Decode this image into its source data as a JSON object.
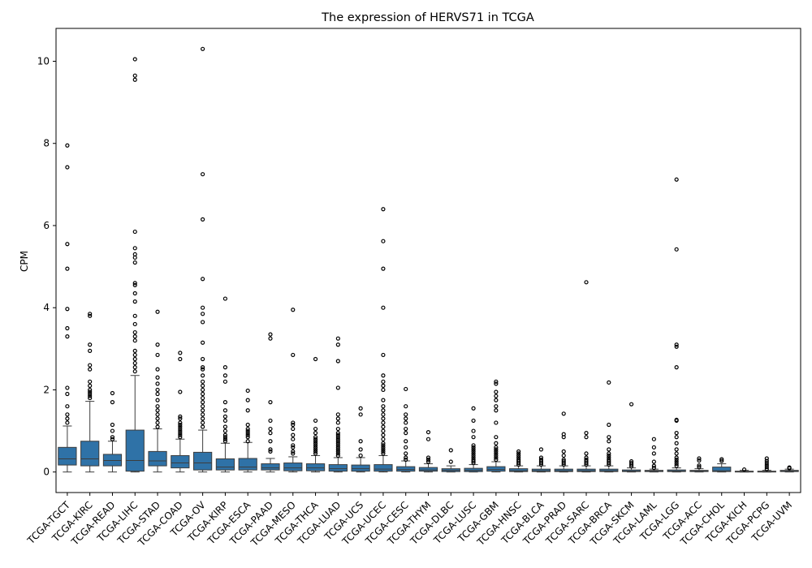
{
  "chart_data": {
    "type": "box",
    "title": "The expression of HERVS71 in TCGA",
    "xlabel": "",
    "ylabel": "CPM",
    "ylim": [
      -0.5,
      10.8
    ],
    "yticks": [
      0,
      2,
      4,
      6,
      8,
      10
    ],
    "grid": false,
    "colors": {
      "box": "#2f72a7",
      "line": "#3d3d3d",
      "outlier": "#000000"
    },
    "categories": [
      "TCGA-TGCT",
      "TCGA-KIRC",
      "TCGA-READ",
      "TCGA-LIHC",
      "TCGA-STAD",
      "TCGA-COAD",
      "TCGA-OV",
      "TCGA-KIRP",
      "TCGA-ESCA",
      "TCGA-PAAD",
      "TCGA-MESO",
      "TCGA-THCA",
      "TCGA-LUAD",
      "TCGA-UCS",
      "TCGA-UCEC",
      "TCGA-CESC",
      "TCGA-THYM",
      "TCGA-DLBC",
      "TCGA-LUSC",
      "TCGA-GBM",
      "TCGA-HNSC",
      "TCGA-BLCA",
      "TCGA-PRAD",
      "TCGA-SARC",
      "TCGA-BRCA",
      "TCGA-SKCM",
      "TCGA-LAML",
      "TCGA-LGG",
      "TCGA-ACC",
      "TCGA-CHOL",
      "TCGA-KICH",
      "TCGA-PCPG",
      "TCGA-UVM"
    ],
    "boxes": [
      {
        "whislo": 0,
        "q1": 0.17,
        "med": 0.32,
        "q3": 0.6,
        "whishi": 1.12,
        "fliers": [
          1.2,
          1.3,
          1.4,
          1.6,
          1.9,
          2.05,
          3.3,
          3.5,
          3.97,
          4.95,
          5.55,
          7.42,
          7.95
        ]
      },
      {
        "whislo": 0,
        "q1": 0.15,
        "med": 0.32,
        "q3": 0.75,
        "whishi": 1.72,
        "fliers": [
          1.8,
          1.85,
          1.9,
          1.95,
          2.0,
          2.1,
          2.2,
          2.5,
          2.6,
          2.95,
          3.1,
          3.8,
          3.85
        ]
      },
      {
        "whislo": 0,
        "q1": 0.15,
        "med": 0.28,
        "q3": 0.43,
        "whishi": 0.75,
        "fliers": [
          0.8,
          0.85,
          1.0,
          1.15,
          1.7,
          1.92
        ]
      },
      {
        "whislo": 0,
        "q1": 0.02,
        "med": 0.28,
        "q3": 1.02,
        "whishi": 2.35,
        "fliers": [
          2.45,
          2.55,
          2.65,
          2.75,
          2.85,
          2.95,
          3.2,
          3.3,
          3.4,
          3.6,
          3.8,
          4.15,
          4.35,
          4.55,
          4.6,
          5.1,
          5.22,
          5.3,
          5.45,
          5.85,
          9.55,
          9.65,
          10.05
        ]
      },
      {
        "whislo": 0,
        "q1": 0.15,
        "med": 0.27,
        "q3": 0.5,
        "whishi": 1.05,
        "fliers": [
          1.1,
          1.2,
          1.3,
          1.4,
          1.5,
          1.6,
          1.75,
          1.9,
          2.0,
          2.15,
          2.3,
          2.5,
          2.85,
          3.1,
          3.9
        ]
      },
      {
        "whislo": 0,
        "q1": 0.1,
        "med": 0.22,
        "q3": 0.4,
        "whishi": 0.8,
        "fliers": [
          0.85,
          0.9,
          0.95,
          1.0,
          1.05,
          1.1,
          1.15,
          1.2,
          1.3,
          1.35,
          1.95,
          2.75,
          2.9
        ]
      },
      {
        "whislo": 0,
        "q1": 0.05,
        "med": 0.22,
        "q3": 0.48,
        "whishi": 1.02,
        "fliers": [
          1.1,
          1.2,
          1.3,
          1.4,
          1.5,
          1.6,
          1.7,
          1.8,
          1.9,
          2.0,
          2.1,
          2.2,
          2.35,
          2.5,
          2.55,
          2.75,
          3.15,
          3.65,
          3.85,
          4.0,
          4.7,
          6.15,
          7.25,
          10.3
        ]
      },
      {
        "whislo": 0,
        "q1": 0.05,
        "med": 0.12,
        "q3": 0.32,
        "whishi": 0.7,
        "fliers": [
          0.75,
          0.8,
          0.85,
          0.9,
          1.0,
          1.1,
          1.25,
          1.35,
          1.5,
          1.7,
          2.2,
          2.35,
          2.55,
          4.22
        ]
      },
      {
        "whislo": 0,
        "q1": 0.05,
        "med": 0.12,
        "q3": 0.33,
        "whishi": 0.72,
        "fliers": [
          0.75,
          0.85,
          0.9,
          0.95,
          1.0,
          1.05,
          1.15,
          1.5,
          1.75,
          1.98
        ]
      },
      {
        "whislo": 0,
        "q1": 0.05,
        "med": 0.1,
        "q3": 0.2,
        "whishi": 0.33,
        "fliers": [
          0.5,
          0.55,
          0.75,
          0.95,
          1.05,
          1.25,
          1.7,
          3.25,
          3.35
        ]
      },
      {
        "whislo": 0,
        "q1": 0.03,
        "med": 0.1,
        "q3": 0.22,
        "whishi": 0.37,
        "fliers": [
          0.45,
          0.5,
          0.6,
          0.65,
          0.8,
          0.9,
          1.05,
          1.15,
          1.2,
          2.85,
          3.95
        ]
      },
      {
        "whislo": 0,
        "q1": 0.03,
        "med": 0.1,
        "q3": 0.2,
        "whishi": 0.4,
        "fliers": [
          0.45,
          0.5,
          0.55,
          0.6,
          0.65,
          0.7,
          0.75,
          0.8,
          0.85,
          0.95,
          1.05,
          1.25,
          2.75
        ]
      },
      {
        "whislo": 0,
        "q1": 0.02,
        "med": 0.08,
        "q3": 0.18,
        "whishi": 0.35,
        "fliers": [
          0.4,
          0.45,
          0.5,
          0.55,
          0.6,
          0.65,
          0.7,
          0.75,
          0.8,
          0.85,
          0.9,
          0.95,
          1.05,
          1.2,
          1.3,
          1.4,
          2.05,
          2.7,
          3.1,
          3.25
        ]
      },
      {
        "whislo": 0,
        "q1": 0.02,
        "med": 0.08,
        "q3": 0.17,
        "whishi": 0.35,
        "fliers": [
          0.4,
          0.55,
          0.75,
          1.4,
          1.55
        ]
      },
      {
        "whislo": 0,
        "q1": 0.02,
        "med": 0.07,
        "q3": 0.18,
        "whishi": 0.4,
        "fliers": [
          0.45,
          0.5,
          0.55,
          0.6,
          0.65,
          0.7,
          0.8,
          0.9,
          1.0,
          1.1,
          1.2,
          1.3,
          1.4,
          1.5,
          1.6,
          1.75,
          2.0,
          2.1,
          2.2,
          2.35,
          2.85,
          4.0,
          4.95,
          5.62,
          6.4
        ]
      },
      {
        "whislo": 0,
        "q1": 0.02,
        "med": 0.06,
        "q3": 0.13,
        "whishi": 0.27,
        "fliers": [
          0.3,
          0.35,
          0.45,
          0.6,
          0.75,
          0.95,
          1.05,
          1.2,
          1.3,
          1.4,
          1.6,
          2.02
        ]
      },
      {
        "whislo": 0,
        "q1": 0.02,
        "med": 0.05,
        "q3": 0.11,
        "whishi": 0.2,
        "fliers": [
          0.25,
          0.3,
          0.35,
          0.8,
          0.97
        ]
      },
      {
        "whislo": 0,
        "q1": 0.01,
        "med": 0.04,
        "q3": 0.08,
        "whishi": 0.15,
        "fliers": [
          0.25,
          0.53
        ]
      },
      {
        "whislo": 0,
        "q1": 0.01,
        "med": 0.04,
        "q3": 0.09,
        "whishi": 0.18,
        "fliers": [
          0.22,
          0.26,
          0.3,
          0.35,
          0.4,
          0.45,
          0.5,
          0.55,
          0.6,
          0.65,
          0.85,
          1.0,
          1.25,
          1.55
        ]
      },
      {
        "whislo": 0,
        "q1": 0.02,
        "med": 0.06,
        "q3": 0.13,
        "whishi": 0.25,
        "fliers": [
          0.3,
          0.35,
          0.4,
          0.45,
          0.5,
          0.55,
          0.6,
          0.7,
          0.85,
          1.2,
          1.5,
          1.6,
          1.75,
          1.85,
          1.95,
          2.15,
          2.2
        ]
      },
      {
        "whislo": 0,
        "q1": 0.01,
        "med": 0.03,
        "q3": 0.08,
        "whishi": 0.15,
        "fliers": [
          0.18,
          0.22,
          0.26,
          0.3,
          0.35,
          0.4,
          0.45,
          0.5
        ]
      },
      {
        "whislo": 0,
        "q1": 0.01,
        "med": 0.03,
        "q3": 0.07,
        "whishi": 0.15,
        "fliers": [
          0.18,
          0.22,
          0.26,
          0.3,
          0.35,
          0.55
        ]
      },
      {
        "whislo": 0,
        "q1": 0.01,
        "med": 0.03,
        "q3": 0.07,
        "whishi": 0.15,
        "fliers": [
          0.18,
          0.22,
          0.26,
          0.3,
          0.4,
          0.5,
          0.85,
          0.92,
          1.42
        ]
      },
      {
        "whislo": 0,
        "q1": 0.01,
        "med": 0.03,
        "q3": 0.07,
        "whishi": 0.15,
        "fliers": [
          0.18,
          0.22,
          0.26,
          0.3,
          0.35,
          0.45,
          0.85,
          0.95,
          4.62
        ]
      },
      {
        "whislo": 0,
        "q1": 0.01,
        "med": 0.03,
        "q3": 0.07,
        "whishi": 0.15,
        "fliers": [
          0.18,
          0.22,
          0.26,
          0.3,
          0.35,
          0.4,
          0.45,
          0.55,
          0.75,
          0.85,
          1.15,
          2.18
        ]
      },
      {
        "whislo": 0,
        "q1": 0.01,
        "med": 0.02,
        "q3": 0.05,
        "whishi": 0.1,
        "fliers": [
          0.14,
          0.18,
          0.22,
          0.26,
          1.65
        ]
      },
      {
        "whislo": 0,
        "q1": 0.01,
        "med": 0.02,
        "q3": 0.04,
        "whishi": 0.07,
        "fliers": [
          0.1,
          0.15,
          0.25,
          0.45,
          0.6,
          0.8
        ]
      },
      {
        "whislo": 0,
        "q1": 0.01,
        "med": 0.02,
        "q3": 0.05,
        "whishi": 0.1,
        "fliers": [
          0.15,
          0.2,
          0.25,
          0.3,
          0.35,
          0.45,
          0.55,
          0.7,
          0.85,
          0.95,
          1.25,
          1.27,
          2.55,
          3.05,
          3.1,
          5.42,
          7.12
        ]
      },
      {
        "whislo": 0,
        "q1": 0.01,
        "med": 0.02,
        "q3": 0.04,
        "whishi": 0.08,
        "fliers": [
          0.12,
          0.16,
          0.28,
          0.33
        ]
      },
      {
        "whislo": 0,
        "q1": 0.01,
        "med": 0.03,
        "q3": 0.12,
        "whishi": 0.2,
        "fliers": [
          0.27,
          0.31
        ]
      },
      {
        "whislo": 0,
        "q1": 0.0,
        "med": 0.01,
        "q3": 0.02,
        "whishi": 0.04,
        "fliers": [
          0.06
        ]
      },
      {
        "whislo": 0,
        "q1": 0.0,
        "med": 0.01,
        "q3": 0.02,
        "whishi": 0.04,
        "fliers": [
          0.07,
          0.12,
          0.17,
          0.22,
          0.27,
          0.33
        ]
      },
      {
        "whislo": 0,
        "q1": 0.01,
        "med": 0.02,
        "q3": 0.04,
        "whishi": 0.07,
        "fliers": [
          0.09,
          0.11
        ]
      }
    ]
  }
}
